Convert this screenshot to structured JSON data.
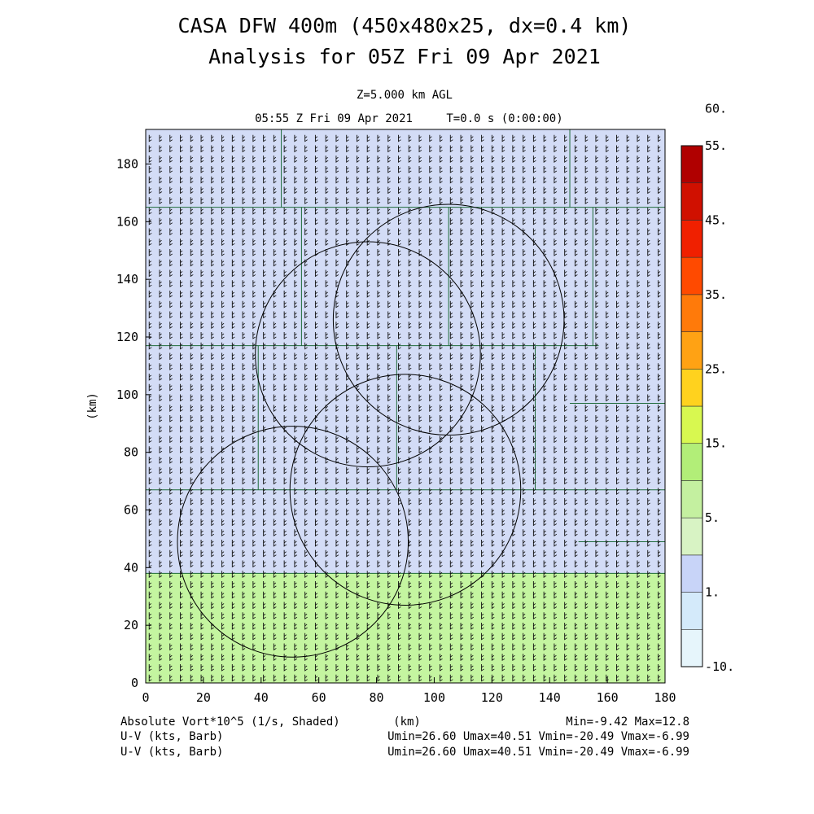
{
  "header": {
    "title_line1": "CASA DFW 400m (450x480x25, dx=0.4 km)",
    "title_line2": "Analysis for 05Z Fri 09 Apr 2021",
    "level": "Z=5.000 km AGL",
    "valid_time": "05:55 Z Fri 09 Apr 2021",
    "model_time": "T=0.0 s (0:00:00)"
  },
  "footer": {
    "field_label": "Absolute Vort*10^5 (1/s, Shaded)",
    "minmax": "Min=-9.42 Max=12.8",
    "wind1_label": "U-V (kts, Barb)",
    "wind1_stats": "Umin=26.60 Umax=40.51 Vmin=-20.49 Vmax=-6.99",
    "wind2_label": "U-V (kts, Barb)",
    "wind2_stats": "Umin=26.60 Umax=40.51 Vmin=-20.49 Vmax=-6.99"
  },
  "chart_data": {
    "type": "heatmap",
    "xlabel": "(km)",
    "ylabel": "(km)",
    "xlim": [
      0,
      180
    ],
    "ylim": [
      0,
      192
    ],
    "x_ticks": [
      0,
      20,
      40,
      60,
      80,
      100,
      120,
      140,
      160,
      180
    ],
    "y_ticks": [
      0,
      20,
      40,
      60,
      80,
      100,
      120,
      140,
      160,
      180
    ],
    "field_regions": [
      {
        "x0": 0,
        "x1": 180,
        "y0": 0,
        "y1": 38,
        "level": 5,
        "color": "#c4f5a0"
      },
      {
        "x0": 0,
        "x1": 180,
        "y0": 38,
        "y1": 192,
        "level": 1,
        "color": "#d3dcf6"
      }
    ],
    "colorbar": {
      "colors": [
        "#e6f5fb",
        "#d4eafa",
        "#c8d4f8",
        "#d8f3c4",
        "#c4f0a0",
        "#b2ee78",
        "#d8f850",
        "#ffd21e",
        "#ffa214",
        "#ff7a0a",
        "#ff4a00",
        "#f02000",
        "#d01000",
        "#b00000"
      ],
      "labels": [
        {
          "index": 0,
          "text": "-10."
        },
        {
          "index": 2,
          "text": "1."
        },
        {
          "index": 4,
          "text": "5."
        },
        {
          "index": 6,
          "text": "15."
        },
        {
          "index": 8,
          "text": "25."
        },
        {
          "index": 10,
          "text": "35."
        },
        {
          "index": 12,
          "text": "45."
        },
        {
          "index": 14,
          "text": "55."
        },
        {
          "index": 15,
          "text": "60."
        }
      ]
    },
    "radar_rings": [
      {
        "cx": 77,
        "cy": 114,
        "r": 39
      },
      {
        "cx": 105,
        "cy": 126,
        "r": 40
      },
      {
        "cx": 90,
        "cy": 67,
        "r": 40
      },
      {
        "cx": 51,
        "cy": 49,
        "r": 40
      }
    ],
    "county_lines": [
      [
        [
          0,
          165
        ],
        [
          180,
          165
        ]
      ],
      [
        [
          0,
          117
        ],
        [
          157,
          117
        ]
      ],
      [
        [
          0,
          67
        ],
        [
          180,
          67
        ]
      ],
      [
        [
          47,
          165
        ],
        [
          47,
          192
        ]
      ],
      [
        [
          54,
          117
        ],
        [
          54,
          165
        ]
      ],
      [
        [
          39,
          67
        ],
        [
          39,
          117
        ]
      ],
      [
        [
          87,
          67
        ],
        [
          87,
          117
        ]
      ],
      [
        [
          105,
          117
        ],
        [
          105,
          165
        ]
      ],
      [
        [
          135,
          67
        ],
        [
          135,
          117
        ]
      ],
      [
        [
          147,
          165
        ],
        [
          147,
          192
        ]
      ],
      [
        [
          155,
          117
        ],
        [
          155,
          165
        ]
      ],
      [
        [
          147,
          97
        ],
        [
          180,
          97
        ]
      ],
      [
        [
          150,
          49
        ],
        [
          180,
          49
        ]
      ],
      [
        [
          0,
          38
        ],
        [
          180,
          38
        ]
      ]
    ],
    "wind_barbs": {
      "u_range": [
        26.6,
        40.51
      ],
      "v_range": [
        -20.49,
        -6.99
      ],
      "units": "kts",
      "spacing_km": 3.6
    }
  }
}
